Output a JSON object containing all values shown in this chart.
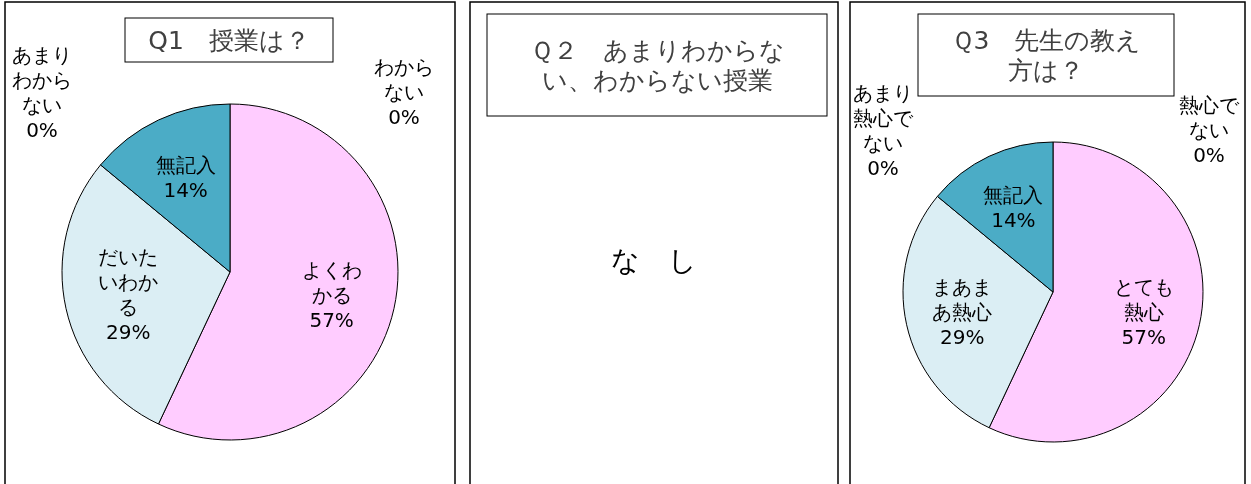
{
  "chart_data": [
    {
      "type": "pie",
      "title": "Q1　授業は？",
      "categories": [
        "よくわかる",
        "だいたいわかる",
        "あまりわからない",
        "わからない",
        "無記入"
      ],
      "values": [
        57,
        29,
        0,
        0,
        14
      ],
      "value_labels": [
        "57%",
        "29%",
        "0%",
        "0%",
        "14%"
      ],
      "colors": [
        "#ffccff",
        "#dbeef4",
        null,
        null,
        "#4bacc6"
      ]
    },
    {
      "type": "other",
      "title": "Ｑ２　あまりわからない、わからない授業",
      "annotations": [
        "な　し"
      ]
    },
    {
      "type": "pie",
      "title": "Ｑ3　先生の教え方は？",
      "categories": [
        "とても熱心",
        "まあまあ熱心",
        "あまり熱心でない",
        "熱心でない",
        "無記入"
      ],
      "values": [
        57,
        29,
        0,
        0,
        14
      ],
      "value_labels": [
        "57%",
        "29%",
        "0%",
        "0%",
        "14%"
      ],
      "colors": [
        "#ffccff",
        "#dbeef4",
        null,
        null,
        "#4bacc6"
      ]
    }
  ]
}
